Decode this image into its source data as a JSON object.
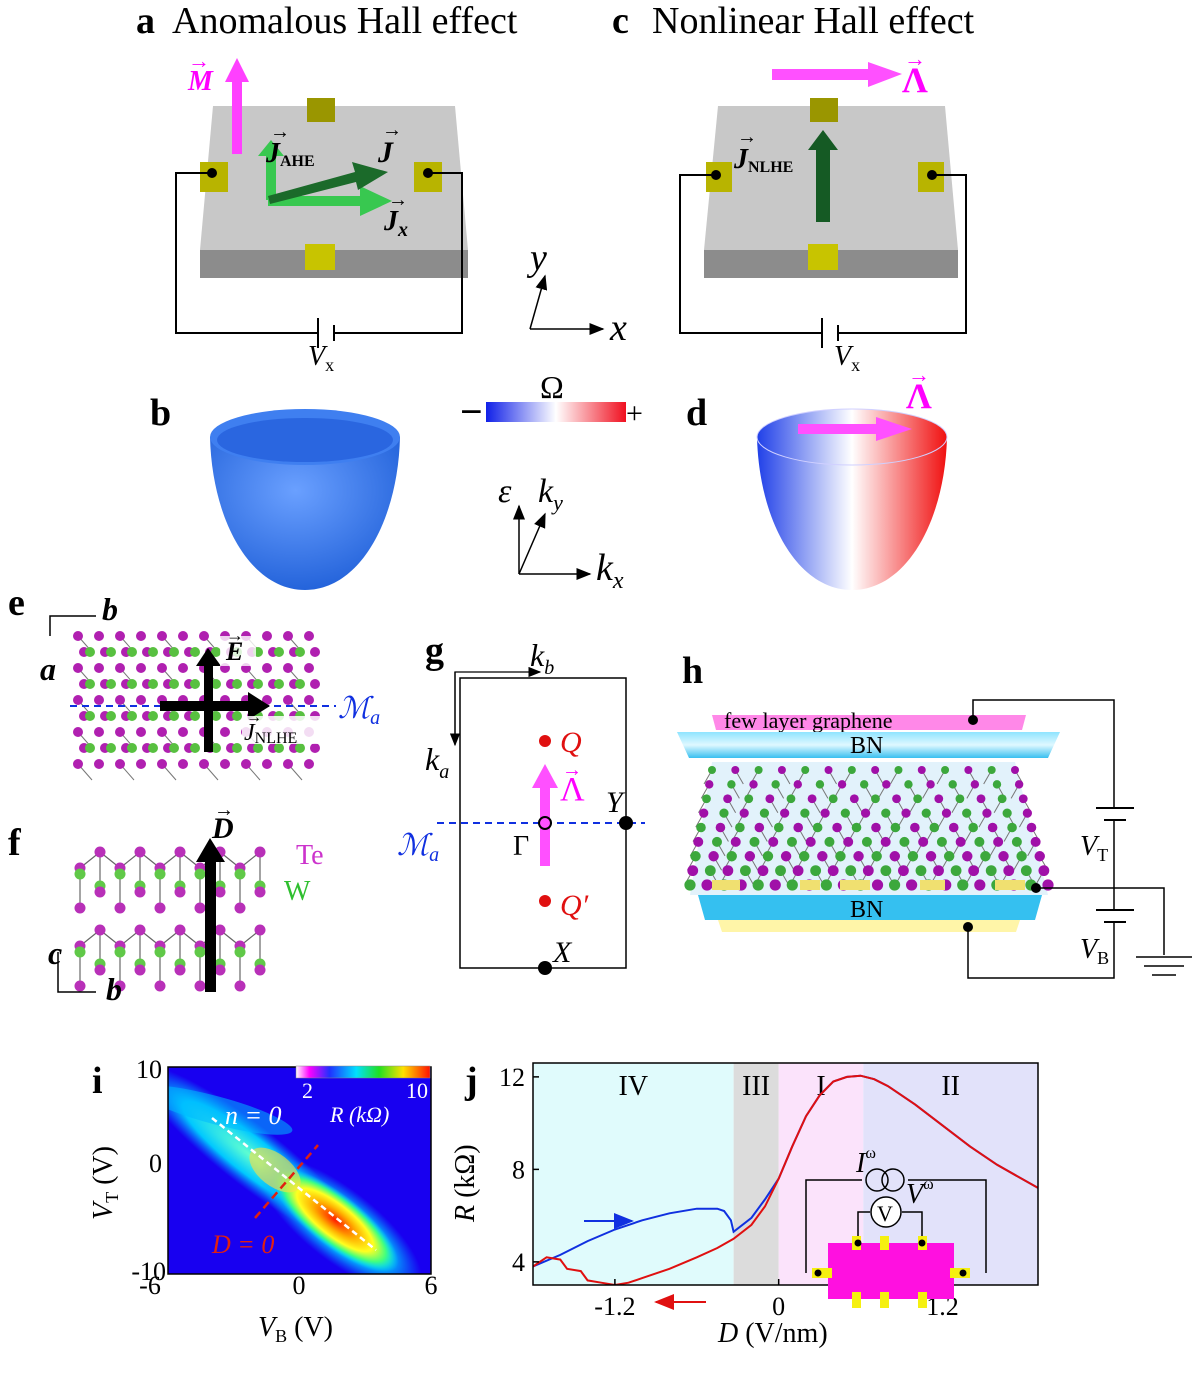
{
  "panels": {
    "a": {
      "label": "a",
      "title": "Anomalous Hall effect",
      "M": "M",
      "J_AHE": "J",
      "J_AHE_sub": "AHE",
      "J": "J",
      "Jx": "J",
      "Jx_sub": "x",
      "Vx": "V",
      "Vx_sub": "x"
    },
    "c": {
      "label": "c",
      "title": "Nonlinear Hall effect",
      "Lambda": "Λ",
      "J_NLHE": "J",
      "J_NLHE_sub": "NLHE",
      "Vx": "V",
      "Vx_sub": "x"
    },
    "axes_xy": {
      "x": "x",
      "y": "y"
    },
    "b": {
      "label": "b"
    },
    "omega_bar": {
      "symbol": "Ω",
      "minus": "−",
      "plus": "+"
    },
    "d": {
      "label": "d",
      "Lambda": "Λ"
    },
    "axes_k": {
      "eps": "ε",
      "ky": "k",
      "ky_sub": "y",
      "kx": "k",
      "kx_sub": "x"
    },
    "e": {
      "label": "e",
      "b": "b",
      "a": "a",
      "E": "E",
      "J": "J",
      "J_sub": "NLHE",
      "mirror": "ℳ",
      "mirror_sub": "a"
    },
    "f": {
      "label": "f",
      "D": "D",
      "Te": "Te",
      "W": "W",
      "c": "c",
      "b": "b"
    },
    "g": {
      "label": "g",
      "kb": "k",
      "kb_sub": "b",
      "ka": "k",
      "ka_sub": "a",
      "Q": "Q",
      "Qp": "Q′",
      "Lambda": "Λ",
      "Gamma": "Γ",
      "Y": "Y",
      "X": "X",
      "mirror": "ℳ",
      "mirror_sub": "a"
    },
    "h": {
      "label": "h",
      "graphene": "few layer graphene",
      "BN_top": "BN",
      "BN_bottom": "BN",
      "VT": "V",
      "VT_sub": "T",
      "VB": "V",
      "VB_sub": "B"
    },
    "i": {
      "label": "i",
      "ylabel": "V",
      "ylabel_sub": "T",
      "ylabel_unit": " (V)",
      "xlabel": "V",
      "xlabel_sub": "B",
      "xlabel_unit": " (V)",
      "xticks": [
        "-6",
        "0",
        "6"
      ],
      "yticks": [
        "10",
        "0",
        "-10"
      ],
      "n0": "n = 0",
      "D0": "D = 0",
      "cbar_ticks": [
        "2",
        "10"
      ],
      "cbar_label": "R (kΩ)"
    },
    "j": {
      "label": "j",
      "ylabel": "R",
      "ylabel_unit": " (kΩ)",
      "xlabel": "D",
      "xlabel_unit": " (V/nm)",
      "xticks": [
        "-1.2",
        "0",
        "1.2"
      ],
      "yticks": [
        "12",
        "8",
        "4"
      ],
      "regions": [
        "IV",
        "III",
        "I",
        "II"
      ],
      "I_w": "I",
      "I_w_sup": "ω",
      "V_w": "V",
      "V_w_sup": "ω",
      "Vmeter": "V"
    }
  },
  "colors": {
    "magenta": "#ff00ff",
    "green_arrow": "#1aa83a",
    "dark_green": "#155a24",
    "bn": "#40c8f0",
    "region_IV": "#e0fbfc",
    "region_III": "#dcdcdc",
    "region_I": "#fbe3fb",
    "region_II": "#e2e2fa",
    "blue_curve": "#1030e0",
    "red_curve": "#e01010"
  },
  "chart_data": [
    {
      "type": "heatmap",
      "panel": "i",
      "xlabel": "V_B (V)",
      "ylabel": "V_T (V)",
      "xlim": [
        -6.5,
        6
      ],
      "ylim": [
        -10.5,
        10
      ],
      "colorbar": {
        "label": "R (kΩ)",
        "ticks": [
          2,
          10
        ]
      },
      "annotations": [
        "n = 0",
        "D = 0"
      ]
    },
    {
      "type": "line",
      "panel": "j",
      "xlabel": "D (V/nm)",
      "ylabel": "R (kΩ)",
      "xlim": [
        -1.8,
        1.9
      ],
      "ylim": [
        3,
        12.6
      ],
      "regions": [
        {
          "name": "IV",
          "range": [
            -1.8,
            -0.33
          ]
        },
        {
          "name": "III",
          "range": [
            -0.33,
            0.0
          ]
        },
        {
          "name": "I",
          "range": [
            0.0,
            0.62
          ]
        },
        {
          "name": "II",
          "range": [
            0.62,
            1.9
          ]
        }
      ],
      "series": [
        {
          "x": [
            -1.8,
            -1.6,
            -1.4,
            -1.2,
            -1.0,
            -0.8,
            -0.6,
            -0.45,
            -0.4,
            -0.35,
            -0.33,
            -0.2,
            -0.1,
            0.0,
            0.1,
            0.2,
            0.3,
            0.4,
            0.5,
            0.6,
            0.7,
            0.8,
            1.0,
            1.2,
            1.4,
            1.6,
            1.9
          ],
          "y": [
            3.8,
            4.3,
            4.9,
            5.4,
            5.8,
            6.1,
            6.3,
            6.3,
            6.2,
            5.8,
            5.3,
            5.9,
            6.7,
            7.6,
            9.0,
            10.3,
            11.2,
            11.8,
            12.0,
            12.05,
            11.9,
            11.6,
            10.8,
            9.9,
            9.0,
            8.2,
            7.2
          ]
        },
        {
          "x": [
            -1.8,
            -1.7,
            -1.6,
            -1.55,
            -1.45,
            -1.4,
            -1.3,
            -1.2,
            -1.1,
            -1.0,
            -0.8,
            -0.6,
            -0.45,
            -0.33,
            -0.2,
            -0.1,
            0.0,
            0.1,
            0.2,
            0.3,
            0.4,
            0.5,
            0.6,
            0.7,
            0.8,
            1.0,
            1.2,
            1.4,
            1.6,
            1.9
          ],
          "y": [
            3.8,
            4.2,
            4.1,
            3.7,
            3.6,
            3.2,
            3.1,
            3.0,
            3.1,
            3.3,
            3.7,
            4.2,
            4.6,
            5.0,
            5.6,
            6.4,
            7.6,
            9.0,
            10.3,
            11.2,
            11.8,
            12.0,
            12.05,
            11.9,
            11.6,
            10.8,
            9.9,
            9.0,
            8.2,
            7.2
          ]
        }
      ]
    }
  ]
}
